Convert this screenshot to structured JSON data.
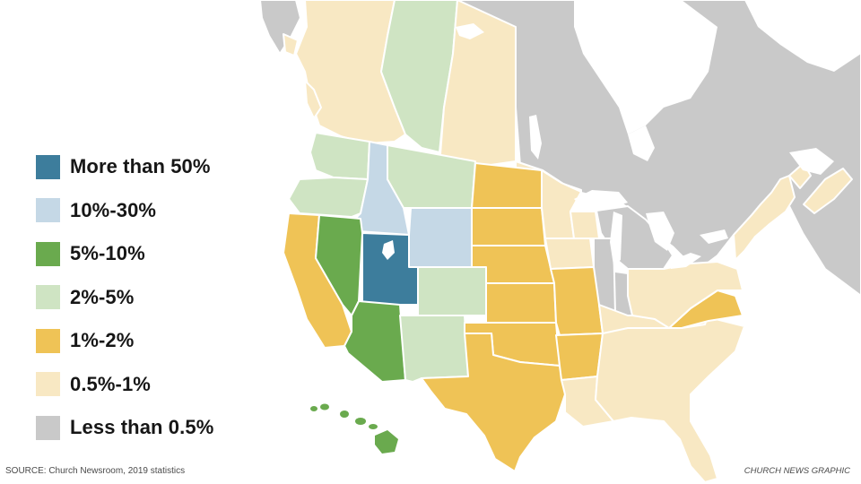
{
  "legend": {
    "items": [
      {
        "label": "More than 50%",
        "color": "#3d7d9c"
      },
      {
        "label": "10%-30%",
        "color": "#c5d8e6"
      },
      {
        "label": "5%-10%",
        "color": "#6aaa4e"
      },
      {
        "label": "2%-5%",
        "color": "#cfe4c3"
      },
      {
        "label": "1%-2%",
        "color": "#efc356"
      },
      {
        "label": "0.5%-1%",
        "color": "#f8e8c3"
      },
      {
        "label": "Less than 0.5%",
        "color": "#c9c9c9"
      }
    ]
  },
  "colors": {
    "water": "#ffffff",
    "border": "#ffffff"
  },
  "footer": {
    "source": "SOURCE: Church Newsroom, 2019 statistics",
    "credit": "CHURCH NEWS GRAPHIC"
  }
}
